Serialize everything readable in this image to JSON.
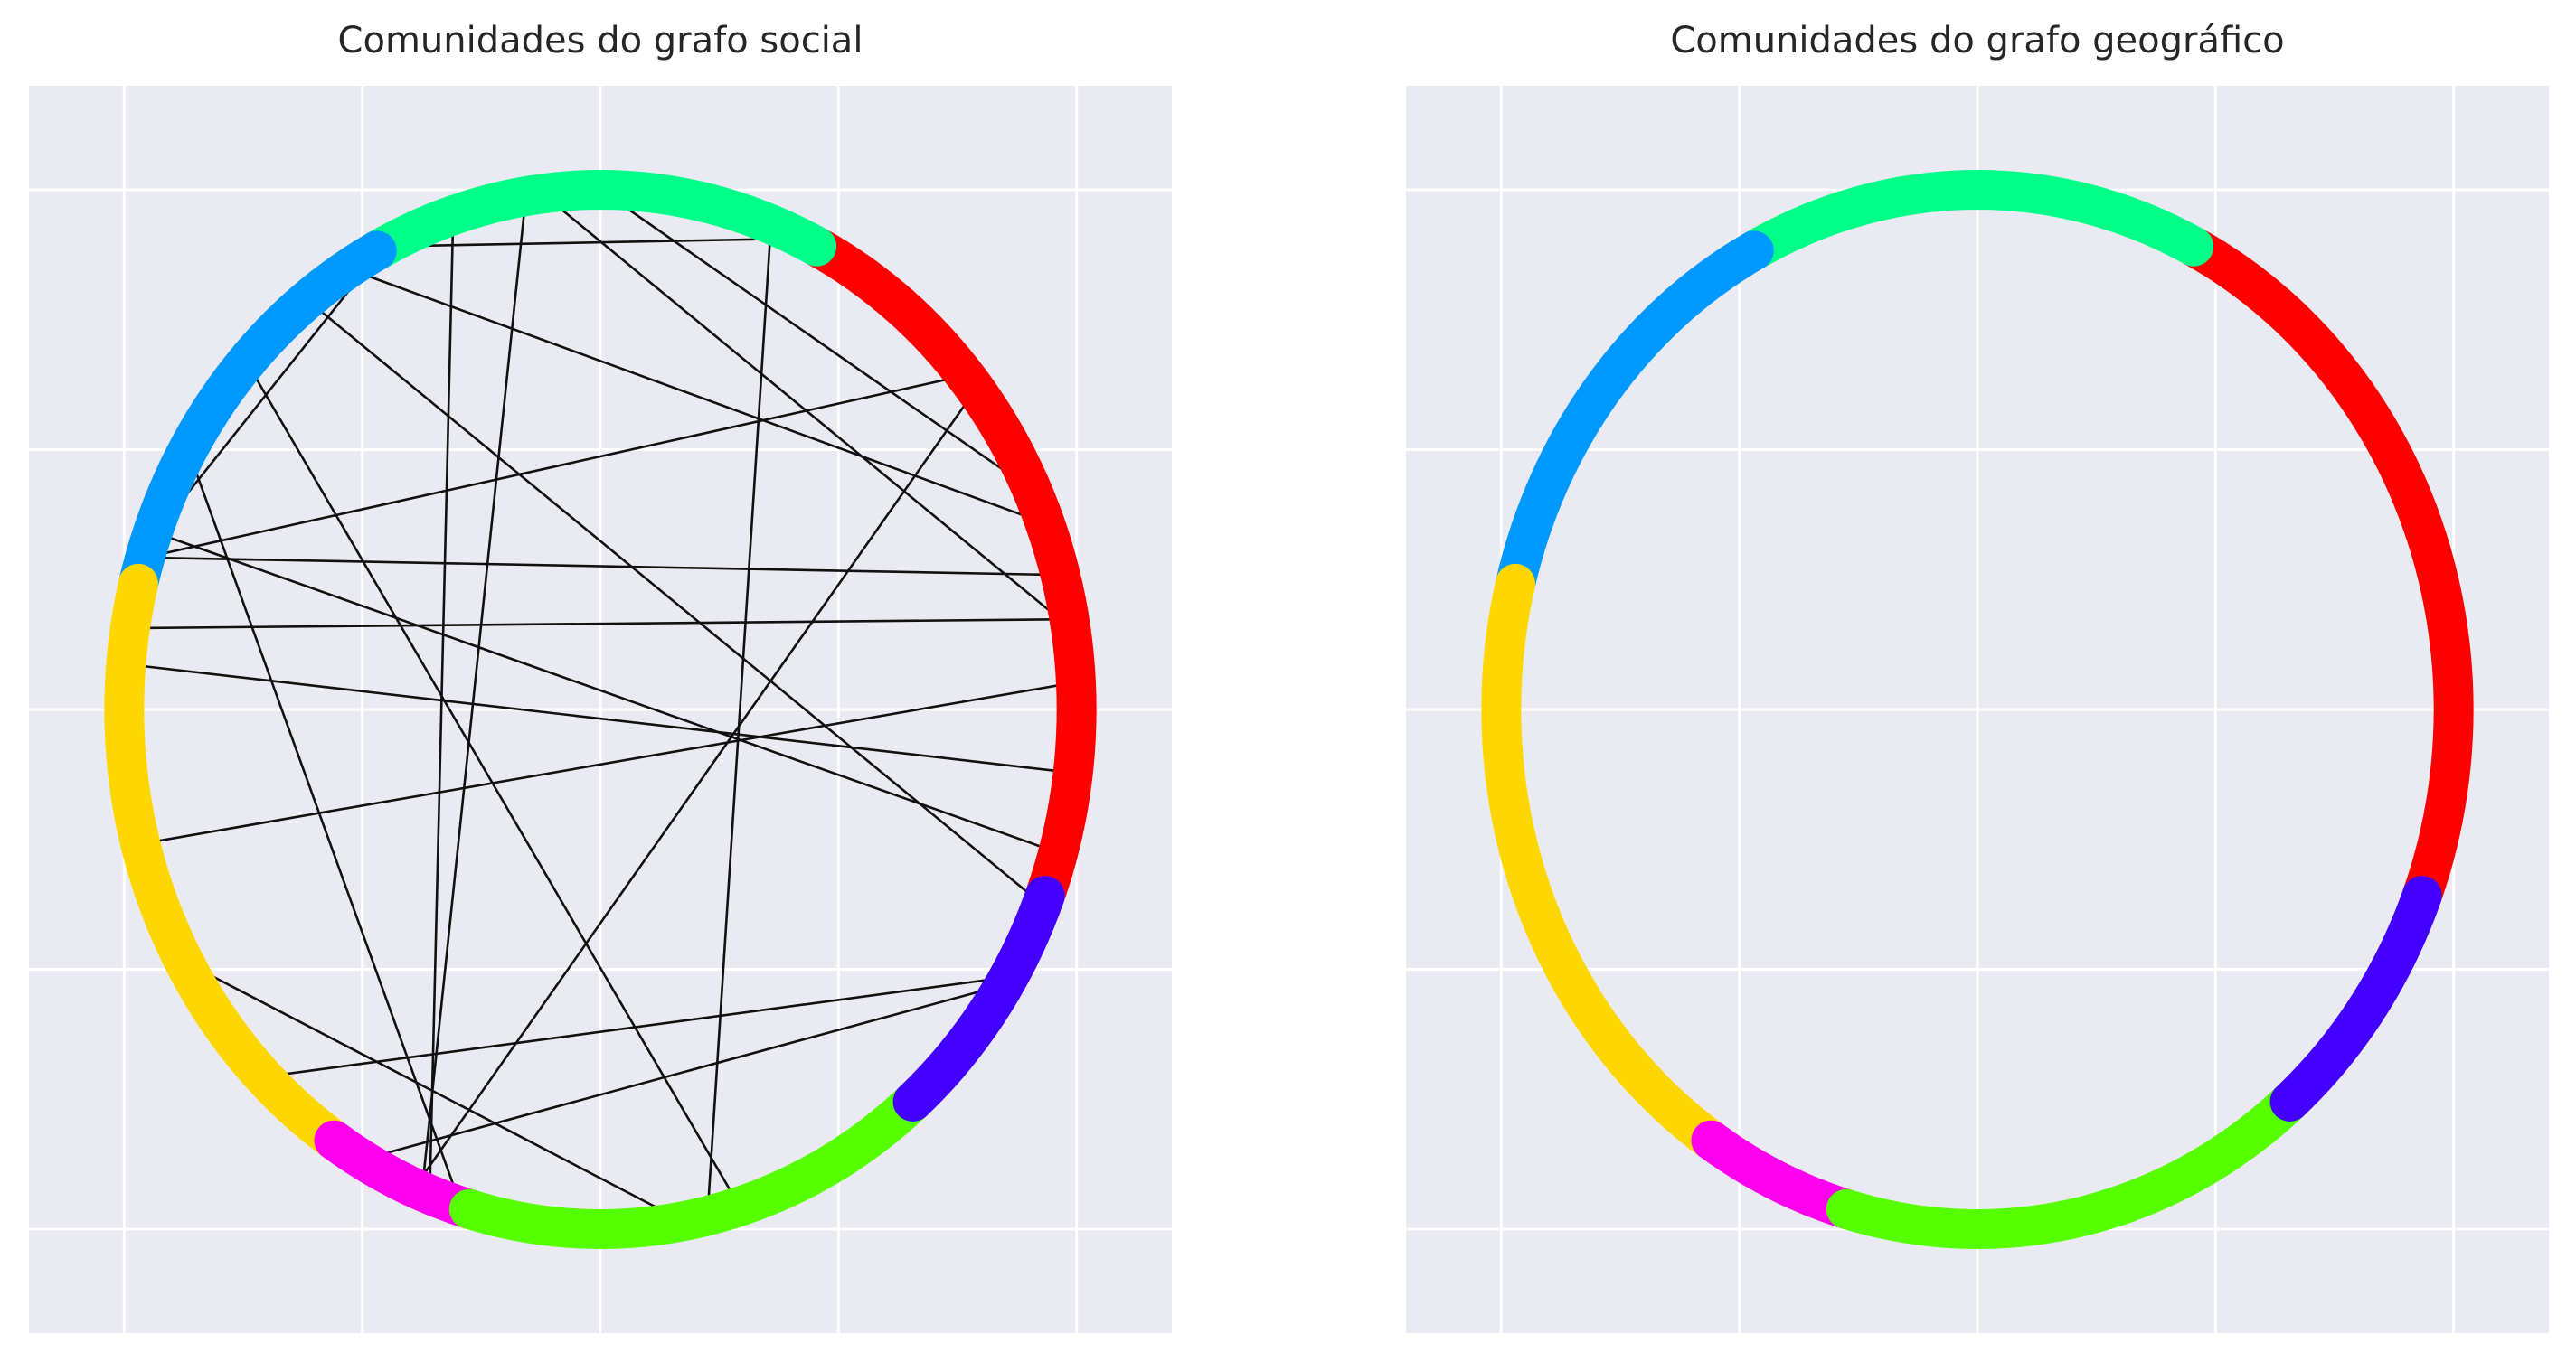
{
  "chart_data": [
    {
      "type": "circular-graph",
      "title": "Comunidades do grafo social",
      "grid": true,
      "xlim": [
        -1.2,
        1.2
      ],
      "ylim": [
        -1.2,
        1.2
      ],
      "xticks": [
        -1.0,
        -0.5,
        0.0,
        0.5,
        1.0
      ],
      "yticks": [
        -1.0,
        -0.5,
        0.0,
        0.5,
        1.0
      ],
      "tick_labels_visible": false,
      "communities": [
        {
          "id": "red",
          "color": "#ff0000",
          "start_deg": -21,
          "end_deg": 63
        },
        {
          "id": "green2",
          "color": "#00ff88",
          "start_deg": 63,
          "end_deg": 118
        },
        {
          "id": "blue",
          "color": "#0099ff",
          "start_deg": 118,
          "end_deg": 166
        },
        {
          "id": "yellow",
          "color": "#ffd700",
          "start_deg": 166,
          "end_deg": 236
        },
        {
          "id": "magenta",
          "color": "#ff00ee",
          "start_deg": 236,
          "end_deg": 254
        },
        {
          "id": "lime",
          "color": "#55ff00",
          "start_deg": 254,
          "end_deg": 311
        },
        {
          "id": "purple",
          "color": "#4400ff",
          "start_deg": 311,
          "end_deg": 339
        }
      ],
      "edges": [
        [
          70,
          82
        ],
        [
          69,
          283
        ],
        [
          117,
          65
        ],
        [
          90,
          25
        ],
        [
          97,
          9
        ],
        [
          99,
          248
        ],
        [
          38,
          247
        ],
        [
          40,
          163
        ],
        [
          138,
          287
        ],
        [
          128,
          338
        ],
        [
          122,
          21
        ],
        [
          117,
          161
        ],
        [
          10,
          171
        ],
        [
          108,
          249
        ],
        [
          344,
          160
        ],
        [
          328,
          240
        ],
        [
          15,
          163
        ],
        [
          3,
          195
        ],
        [
          329,
          225
        ],
        [
          253,
          150
        ],
        [
          209,
          280
        ],
        [
          175,
          353
        ]
      ]
    },
    {
      "type": "circular-graph",
      "title": "Comunidades do grafo geográfico",
      "grid": true,
      "xlim": [
        -1.2,
        1.2
      ],
      "ylim": [
        -1.2,
        1.2
      ],
      "xticks": [
        -1.0,
        -0.5,
        0.0,
        0.5,
        1.0
      ],
      "yticks": [
        -1.0,
        -0.5,
        0.0,
        0.5,
        1.0
      ],
      "tick_labels_visible": false,
      "communities": [
        {
          "id": "red",
          "color": "#ff0000",
          "start_deg": -21,
          "end_deg": 63
        },
        {
          "id": "green2",
          "color": "#00ff88",
          "start_deg": 63,
          "end_deg": 118
        },
        {
          "id": "blue",
          "color": "#0099ff",
          "start_deg": 118,
          "end_deg": 166
        },
        {
          "id": "yellow",
          "color": "#ffd700",
          "start_deg": 166,
          "end_deg": 236
        },
        {
          "id": "magenta",
          "color": "#ff00ee",
          "start_deg": 236,
          "end_deg": 254
        },
        {
          "id": "lime",
          "color": "#55ff00",
          "start_deg": 254,
          "end_deg": 311
        },
        {
          "id": "purple",
          "color": "#4400ff",
          "start_deg": 311,
          "end_deg": 339
        }
      ],
      "edges": []
    }
  ]
}
